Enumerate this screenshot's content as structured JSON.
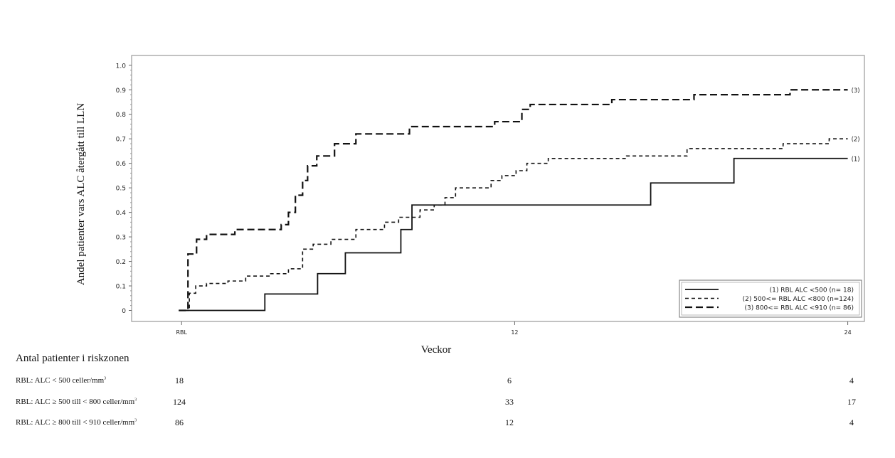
{
  "chart_data": {
    "type": "line",
    "step": true,
    "xlabel": "Veckor",
    "ylabel": "Andel patienter vars ALC återgått till LLN",
    "xlim": [
      -1.8,
      24.6
    ],
    "ylim": [
      -0.045,
      1.04
    ],
    "x_ticks": [
      {
        "value": 0,
        "label": "RBL"
      },
      {
        "value": 12,
        "label": "12"
      },
      {
        "value": 24,
        "label": "24"
      }
    ],
    "y_ticks": [
      {
        "value": 0,
        "label": "0"
      },
      {
        "value": 0.1,
        "label": "0.1"
      },
      {
        "value": 0.2,
        "label": "0.2"
      },
      {
        "value": 0.3,
        "label": "0.3"
      },
      {
        "value": 0.4,
        "label": "0.4"
      },
      {
        "value": 0.5,
        "label": "0.5"
      },
      {
        "value": 0.6,
        "label": "0.6"
      },
      {
        "value": 0.7,
        "label": "0.7"
      },
      {
        "value": 0.8,
        "label": "0.8"
      },
      {
        "value": 0.9,
        "label": "0.9"
      },
      {
        "value": 1.0,
        "label": "1.0"
      }
    ],
    "grid": false,
    "legend_position": "bottom-right",
    "series": [
      {
        "name": "(1) RBL ALC <500 (n= 18)",
        "end_label": "(1)",
        "style": "solid",
        "x": [
          -0.1,
          3.0,
          4.9,
          5.9,
          7.9,
          8.3,
          16.9,
          19.9,
          24
        ],
        "y": [
          0,
          0.067,
          0.15,
          0.235,
          0.33,
          0.43,
          0.52,
          0.62,
          0.62
        ]
      },
      {
        "name": "(2) 500<= RBL ALC <800 (n=124)",
        "end_label": "(2)",
        "style": "short-dash",
        "x": [
          -0.1,
          0.28,
          0.51,
          0.9,
          1.67,
          2.31,
          3.21,
          3.85,
          4.36,
          4.74,
          5.38,
          6.28,
          7.31,
          7.82,
          8.59,
          9.1,
          9.49,
          9.87,
          11.15,
          11.54,
          12.05,
          12.44,
          13.21,
          16.03,
          18.21,
          21.67,
          23.33,
          24
        ],
        "y": [
          0,
          0.07,
          0.1,
          0.11,
          0.12,
          0.14,
          0.15,
          0.17,
          0.25,
          0.27,
          0.29,
          0.33,
          0.36,
          0.38,
          0.41,
          0.43,
          0.46,
          0.5,
          0.53,
          0.55,
          0.57,
          0.6,
          0.62,
          0.63,
          0.66,
          0.68,
          0.7,
          0.7
        ]
      },
      {
        "name": "(3) 800<= RBL ALC <910 (n= 86)",
        "end_label": "(3)",
        "style": "long-dash",
        "x": [
          -0.1,
          0.23,
          0.54,
          0.9,
          1.92,
          3.59,
          3.85,
          4.1,
          4.36,
          4.54,
          4.87,
          5.51,
          6.28,
          8.21,
          11.28,
          12.26,
          12.56,
          15.5,
          18.46,
          21.92,
          24
        ],
        "y": [
          0,
          0.23,
          0.29,
          0.31,
          0.33,
          0.35,
          0.4,
          0.47,
          0.53,
          0.59,
          0.63,
          0.68,
          0.72,
          0.75,
          0.77,
          0.82,
          0.84,
          0.86,
          0.88,
          0.9,
          0.9
        ]
      }
    ]
  },
  "risk_table": {
    "title": "Antal patienter i riskzonen",
    "rows": [
      {
        "label": "RBL: ALC < 500 celler/mm",
        "sup": "3",
        "values": [
          "18",
          "6",
          "4"
        ]
      },
      {
        "label": "RBL: ALC ≥ 500 till < 800 celler/mm",
        "sup": "3",
        "values": [
          "124",
          "33",
          "17"
        ]
      },
      {
        "label": "RBL: ALC ≥ 800 till < 910 celler/mm",
        "sup": "3",
        "values": [
          "86",
          "12",
          "4"
        ]
      }
    ]
  }
}
